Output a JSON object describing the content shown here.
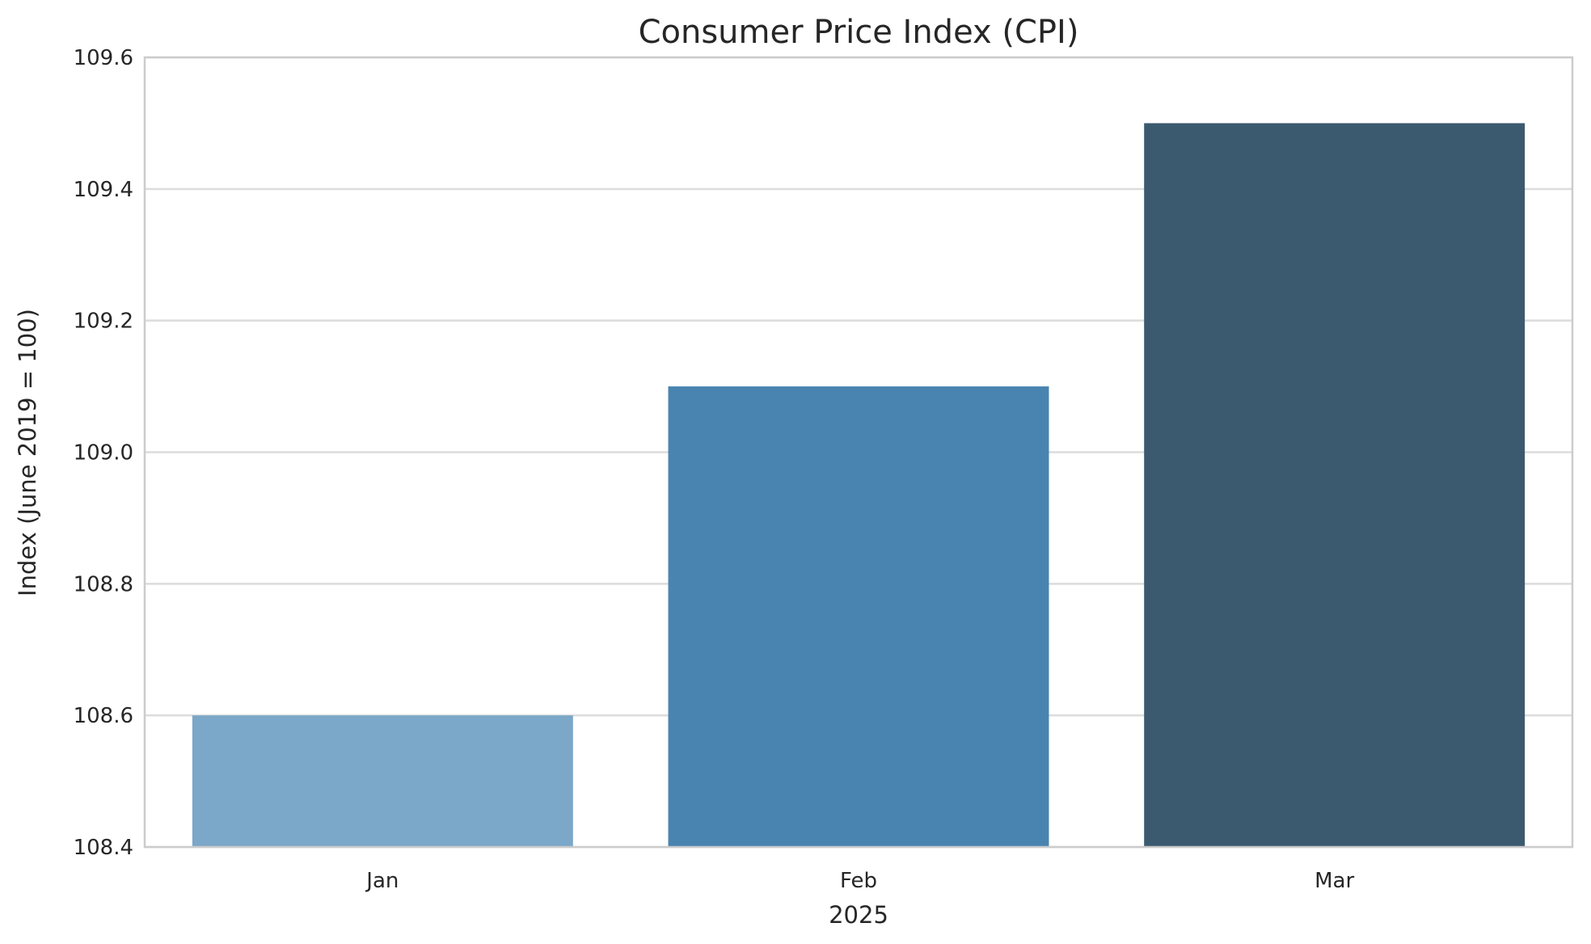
{
  "chart_data": {
    "type": "bar",
    "title": "Consumer Price Index (CPI)",
    "xlabel": "2025",
    "ylabel": "Index (June 2019 = 100)",
    "categories": [
      "Jan",
      "Feb",
      "Mar"
    ],
    "values": [
      108.6,
      109.1,
      109.5
    ],
    "colors": [
      "#7ba7c8",
      "#4984b0",
      "#3c5a6f"
    ],
    "ylim": [
      108.4,
      109.6
    ],
    "yticks": [
      "108.4",
      "108.6",
      "108.8",
      "109.0",
      "109.2",
      "109.4",
      "109.6"
    ],
    "grid": true,
    "grid_axis": "y",
    "legend": false
  }
}
